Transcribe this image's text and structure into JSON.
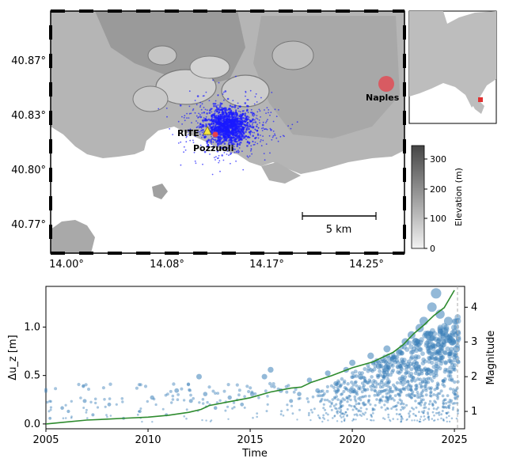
{
  "map": {
    "lat_ticks": [
      "40.87°",
      "40.83°",
      "40.80°",
      "40.77°"
    ],
    "lon_ticks": [
      "14.00°",
      "14.08°",
      "14.17°",
      "14.25°"
    ],
    "labels": {
      "rite": "RITE",
      "pozzuoli": "Pozzuoli",
      "naples": "Naples"
    },
    "scalebar_label": "5 km",
    "colorbar": {
      "label": "Elevation (m)",
      "ticks": [
        "300",
        "200",
        "100",
        "0"
      ]
    },
    "colors": {
      "seismicity": "#1a1aff",
      "naples_marker": "#e8414b",
      "rite_marker": "#f5e642",
      "pozzuoli_marker": "#e8414b",
      "inset_marker": "#e03030"
    }
  },
  "chart_data": {
    "type": "scatter",
    "xlabel": "Time",
    "ylabel": "Δu_z [m]",
    "ylabel_right": "Magnitude",
    "xlim": [
      2005,
      2025.5
    ],
    "ylim": [
      -0.05,
      1.42
    ],
    "ylim_right": [
      0.5,
      4.6
    ],
    "x_ticks": [
      "2005",
      "2010",
      "2015",
      "2020",
      "2025"
    ],
    "y_ticks": [
      "0.0",
      "0.5",
      "1.0"
    ],
    "y_ticks_right": [
      "1",
      "2",
      "3",
      "4"
    ],
    "series": [
      {
        "kind": "line",
        "color": "#2e8b2e",
        "x": [
          2005.0,
          2006.0,
          2007.0,
          2008.0,
          2009.0,
          2010.0,
          2011.0,
          2012.0,
          2012.6,
          2013.0,
          2014.0,
          2015.0,
          2016.0,
          2017.0,
          2017.5,
          2018.0,
          2019.0,
          2020.0,
          2021.0,
          2022.0,
          2022.5,
          2023.0,
          2023.5,
          2024.0,
          2024.5,
          2025.0
        ],
        "values": [
          0.0,
          0.02,
          0.04,
          0.05,
          0.06,
          0.07,
          0.09,
          0.12,
          0.15,
          0.19,
          0.23,
          0.27,
          0.33,
          0.37,
          0.38,
          0.43,
          0.5,
          0.58,
          0.64,
          0.74,
          0.82,
          0.93,
          1.02,
          1.12,
          1.2,
          1.38
        ]
      },
      {
        "kind": "scatter",
        "name": "Magnitude",
        "color": "#3a7fb8",
        "x": [
          2005.2,
          2005.8,
          2006.1,
          2006.9,
          2007.3,
          2008.1,
          2008.8,
          2009.6,
          2010.2,
          2010.9,
          2011.4,
          2012.1,
          2012.5,
          2012.8,
          2013.3,
          2014.0,
          2014.6,
          2015.1,
          2015.7,
          2016.0,
          2016.5,
          2017.0,
          2017.4,
          2017.9,
          2018.3,
          2018.8,
          2019.2,
          2019.7,
          2020.0,
          2020.4,
          2020.9,
          2021.3,
          2021.7,
          2022.0,
          2022.3,
          2022.6,
          2022.9,
          2023.1,
          2023.3,
          2023.5,
          2023.7,
          2023.9,
          2024.1,
          2024.3,
          2024.5,
          2024.7,
          2024.9,
          2025.1
        ],
        "values": [
          0.8,
          1.1,
          1.0,
          1.3,
          0.9,
          1.2,
          0.8,
          1.0,
          1.4,
          0.9,
          1.6,
          1.3,
          2.0,
          1.5,
          1.1,
          1.4,
          1.2,
          1.5,
          2.0,
          2.2,
          1.6,
          1.3,
          1.5,
          1.9,
          1.6,
          2.1,
          1.8,
          2.2,
          2.4,
          2.0,
          2.6,
          2.3,
          2.8,
          2.5,
          2.7,
          3.0,
          3.2,
          3.0,
          3.4,
          3.6,
          3.2,
          4.0,
          4.4,
          3.8,
          3.3,
          3.6,
          3.0,
          2.8
        ]
      }
    ]
  }
}
